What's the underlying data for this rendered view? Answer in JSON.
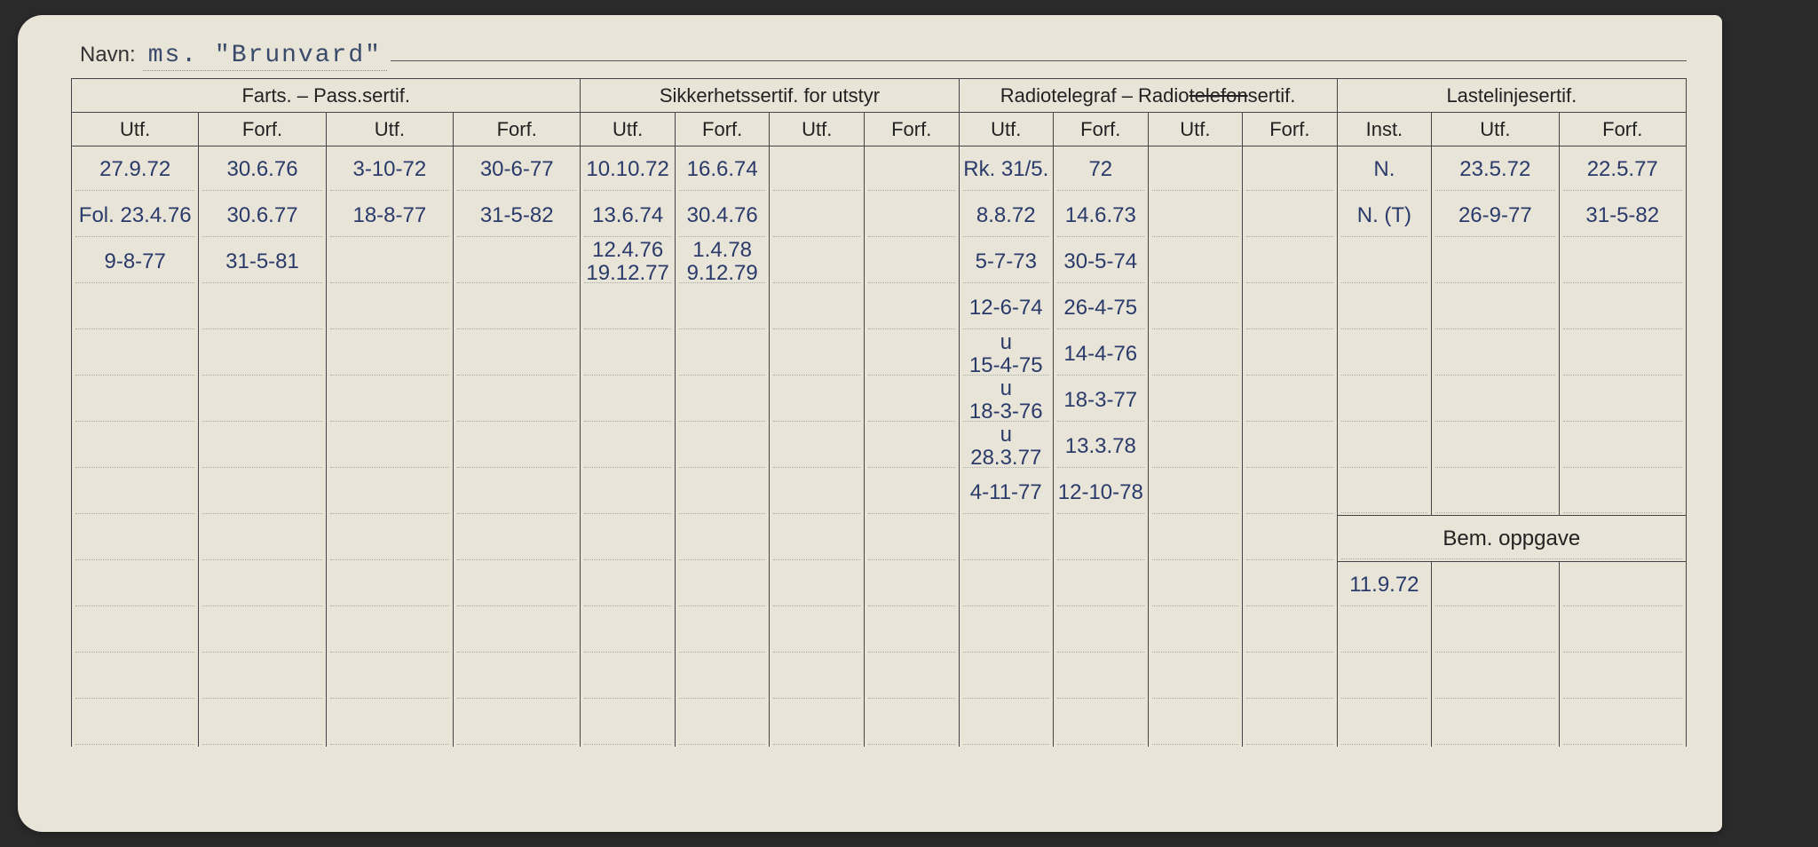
{
  "navn_label": "Navn:",
  "navn_value": "ms. \"Brunvard\"",
  "groups": [
    {
      "label": "Farts. – Pass.sertif.",
      "cols": [
        "Utf.",
        "Forf.",
        "Utf.",
        "Forf."
      ]
    },
    {
      "label": "Sikkerhetssertif. for utstyr",
      "cols": [
        "Utf.",
        "Forf.",
        "Utf.",
        "Forf."
      ]
    },
    {
      "label": "Radiotelegraf – Radiotelefonsertif.",
      "cols": [
        "Utf.",
        "Forf.",
        "Utf.",
        "Forf."
      ]
    },
    {
      "label": "Lastelinjesertif.",
      "cols": [
        "Inst.",
        "Utf.",
        "Forf."
      ]
    }
  ],
  "bem_label": "Bem. oppgave",
  "rows": [
    [
      "27.9.72",
      "30.6.76",
      "3-10-72",
      "30-6-77",
      "10.10.72",
      "16.6.74",
      "",
      "",
      "Rk. 31/5.",
      "72",
      "",
      "",
      "N.",
      "23.5.72",
      "22.5.77"
    ],
    [
      "Fol. 23.4.76",
      "30.6.77",
      "18-8-77",
      "31-5-82",
      "13.6.74",
      "30.4.76",
      "",
      "",
      "8.8.72",
      "14.6.73",
      "",
      "",
      "N. (T)",
      "26-9-77",
      "31-5-82"
    ],
    [
      "9-8-77",
      "31-5-81",
      "",
      "",
      "12.4.76\n19.12.77",
      "1.4.78\n9.12.79",
      "",
      "",
      "5-7-73",
      "30-5-74",
      "",
      "",
      "",
      "",
      ""
    ],
    [
      "",
      "",
      "",
      "",
      "",
      "",
      "",
      "",
      "12-6-74",
      "26-4-75",
      "",
      "",
      "",
      "",
      ""
    ],
    [
      "",
      "",
      "",
      "",
      "",
      "",
      "",
      "",
      "u\n15-4-75",
      "14-4-76",
      "",
      "",
      "",
      "",
      ""
    ],
    [
      "",
      "",
      "",
      "",
      "",
      "",
      "",
      "",
      "u\n18-3-76",
      "18-3-77",
      "",
      "",
      "",
      "",
      ""
    ],
    [
      "",
      "",
      "",
      "",
      "",
      "",
      "",
      "",
      "u\n28.3.77",
      "13.3.78",
      "",
      "",
      "",
      "",
      ""
    ],
    [
      "",
      "",
      "",
      "",
      "",
      "",
      "",
      "",
      "4-11-77",
      "12-10-78",
      "",
      "",
      "",
      "",
      ""
    ]
  ],
  "bem_rows": [
    [
      "11.9.72",
      "",
      ""
    ],
    [
      "",
      "",
      ""
    ],
    [
      "",
      "",
      ""
    ],
    [
      "",
      "",
      ""
    ]
  ],
  "blank_rows_after_radio": 4,
  "strike_group3_label": "telefon",
  "colors": {
    "card_bg": "#e8e4d8",
    "ink": "#2a3a6a",
    "print": "#333333",
    "border": "#444444"
  },
  "holes": 12
}
